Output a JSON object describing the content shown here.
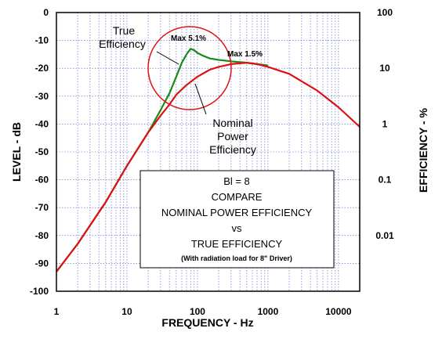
{
  "chart_data": {
    "type": "line",
    "xlabel": "FREQUENCY - Hz",
    "ylabel": "LEVEL - dB",
    "ylabel_right": "EFFICIENCY - %",
    "x_scale": "log",
    "xlim": [
      1,
      20000
    ],
    "ylim": [
      -100,
      0
    ],
    "y2_scale": "log",
    "y2lim": [
      0.001,
      100
    ],
    "grid": true,
    "x_ticks": [
      "1",
      "10",
      "100",
      "1000",
      "10000"
    ],
    "y_ticks": [
      "0",
      "-10",
      "-20",
      "-30",
      "-40",
      "-50",
      "-60",
      "-70",
      "-80",
      "-90",
      "-100"
    ],
    "y2_ticks": [
      "100",
      "10",
      "1",
      "0.1",
      "0.01"
    ],
    "series": [
      {
        "color": "#1a8a1a",
        "x": [
          1,
          2,
          5,
          10,
          20,
          30,
          40,
          50,
          60,
          70,
          80,
          90,
          100,
          120,
          150,
          200,
          300,
          500,
          700,
          1000
        ],
        "y": [
          -93,
          -83,
          -68,
          -55,
          -43,
          -35,
          -29,
          -23,
          -18,
          -15,
          -13,
          -13.5,
          -14.5,
          -15.5,
          -16.5,
          -17,
          -17.5,
          -18,
          -18.5,
          -19
        ]
      },
      {
        "color": "#dd1111",
        "x": [
          1,
          2,
          5,
          10,
          20,
          30,
          40,
          50,
          70,
          100,
          150,
          200,
          300,
          500,
          700,
          1000,
          2000,
          5000,
          10000,
          20000
        ],
        "y": [
          -93,
          -83,
          -68,
          -55,
          -43,
          -37,
          -33,
          -29.5,
          -26,
          -23,
          -20.5,
          -19.5,
          -18.5,
          -18,
          -18.5,
          -19.5,
          -22,
          -28,
          -34,
          -41
        ]
      }
    ],
    "annotations": {
      "true_eff": [
        "True",
        "Efficiency"
      ],
      "max_true": "Max 5.1%",
      "max_nominal": "Max 1.5%",
      "nominal_eff": [
        "Nominal",
        "Power",
        "Efficiency"
      ],
      "box": [
        "Bl = 8",
        "COMPARE",
        "NOMINAL POWER EFFICIENCY",
        "vs",
        "TRUE EFFICIENCY"
      ],
      "box_note": "(With radiation load for 8\" Driver)"
    }
  }
}
